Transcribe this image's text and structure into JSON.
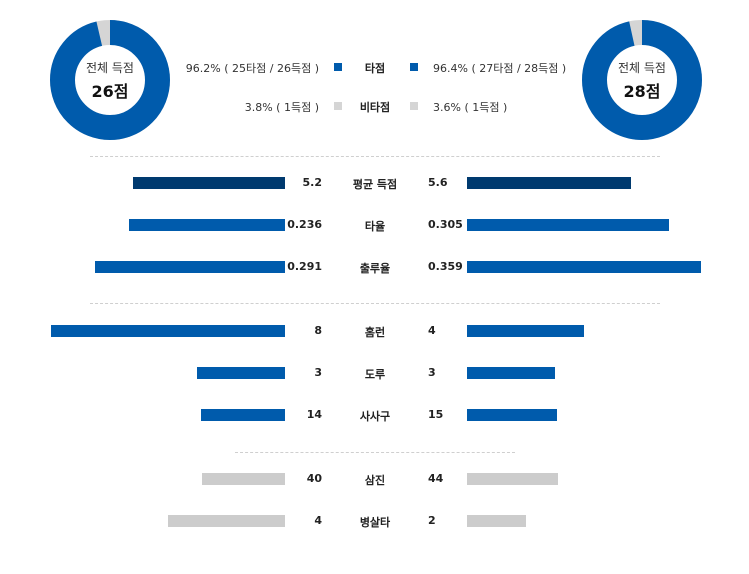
{
  "colors": {
    "hit": "#005bac",
    "nonhit": "#d5d5d5",
    "avg_bar": "#003a6f",
    "gray_bar": "#cccccc"
  },
  "left_team": {
    "donut_caption": "전체 득점",
    "donut_total": "26점",
    "hit_pct": 96.2,
    "legend_hit": "96.2% ( 25타점 / 26득점 )",
    "legend_nonhit": "3.8% ( 1득점 )"
  },
  "right_team": {
    "donut_caption": "전체 득점",
    "donut_total": "28점",
    "hit_pct": 96.4,
    "legend_hit": "96.4% ( 27타점 / 28득점 )",
    "legend_nonhit": "3.6% ( 1득점 )"
  },
  "legend": {
    "hit_label": "타점",
    "nonhit_label": "비타점"
  },
  "chart_data": {
    "type": "bar",
    "layout": "butterfly",
    "groups": [
      {
        "rows": [
          {
            "label": "평균 득점",
            "left": 5.2,
            "right": 5.6,
            "left_text": "5.2",
            "right_text": "5.6",
            "color": "avg_bar",
            "max": 8.0
          },
          {
            "label": "타율",
            "left": 0.236,
            "right": 0.305,
            "left_text": "0.236",
            "right_text": "0.305",
            "color": "hit",
            "max": 0.354
          },
          {
            "label": "출루율",
            "left": 0.291,
            "right": 0.359,
            "left_text": "0.291",
            "right_text": "0.359",
            "color": "hit",
            "max": 0.359
          }
        ]
      },
      {
        "rows": [
          {
            "label": "홈런",
            "left": 8,
            "right": 4,
            "left_text": "8",
            "right_text": "4",
            "color": "hit",
            "max": 8
          },
          {
            "label": "도루",
            "left": 3,
            "right": 3,
            "left_text": "3",
            "right_text": "3",
            "color": "hit",
            "max": 8
          },
          {
            "label": "사사구",
            "left": 14,
            "right": 15,
            "left_text": "14",
            "right_text": "15",
            "color": "hit",
            "max": 39
          }
        ]
      },
      {
        "rows": [
          {
            "label": "삼진",
            "left": 40,
            "right": 44,
            "left_text": "40",
            "right_text": "44",
            "color": "gray_bar",
            "max": 113
          },
          {
            "label": "병살타",
            "left": 4,
            "right": 2,
            "left_text": "4",
            "right_text": "2",
            "color": "gray_bar",
            "max": 8
          }
        ]
      }
    ]
  }
}
